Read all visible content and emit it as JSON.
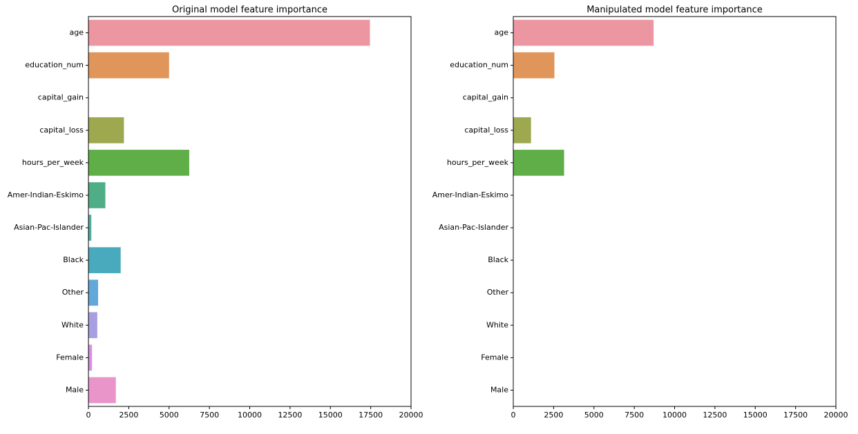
{
  "chart_data": [
    {
      "type": "bar",
      "orientation": "horizontal",
      "title": "Original model feature importance",
      "xlabel": "",
      "ylabel": "",
      "xlim": [
        0,
        20000
      ],
      "xticks": [
        0,
        2500,
        5000,
        7500,
        10000,
        12500,
        15000,
        17500,
        20000
      ],
      "grid": false,
      "categories": [
        "age",
        "education_num",
        "capital_gain",
        "capital_loss",
        "hours_per_week",
        "Amer-Indian-Eskimo",
        "Asian-Pac-Islander",
        "Black",
        "Other",
        "White",
        "Female",
        "Male"
      ],
      "values": [
        17450,
        5000,
        0,
        2200,
        6250,
        1050,
        180,
        2000,
        600,
        550,
        220,
        1700
      ],
      "colors": [
        "#eb96a1",
        "#e0955a",
        "#b8a94e",
        "#9da84f",
        "#5fae48",
        "#4fae85",
        "#51ae9f",
        "#4aaabd",
        "#62a8da",
        "#a79fe1",
        "#d692e0",
        "#e995c9"
      ]
    },
    {
      "type": "bar",
      "orientation": "horizontal",
      "title": "Manipulated model feature importance",
      "xlabel": "",
      "ylabel": "",
      "xlim": [
        0,
        20000
      ],
      "xticks": [
        0,
        2500,
        5000,
        7500,
        10000,
        12500,
        15000,
        17500,
        20000
      ],
      "grid": false,
      "categories": [
        "age",
        "education_num",
        "capital_gain",
        "capital_loss",
        "hours_per_week",
        "Amer-Indian-Eskimo",
        "Asian-Pac-Islander",
        "Black",
        "Other",
        "White",
        "Female",
        "Male"
      ],
      "values": [
        8700,
        2550,
        0,
        1100,
        3150,
        0,
        0,
        0,
        0,
        0,
        0,
        0
      ],
      "colors": [
        "#eb96a1",
        "#e0955a",
        "#b8a94e",
        "#9da84f",
        "#5fae48",
        "#4fae85",
        "#51ae9f",
        "#4aaabd",
        "#62a8da",
        "#a79fe1",
        "#d692e0",
        "#e995c9"
      ]
    }
  ]
}
